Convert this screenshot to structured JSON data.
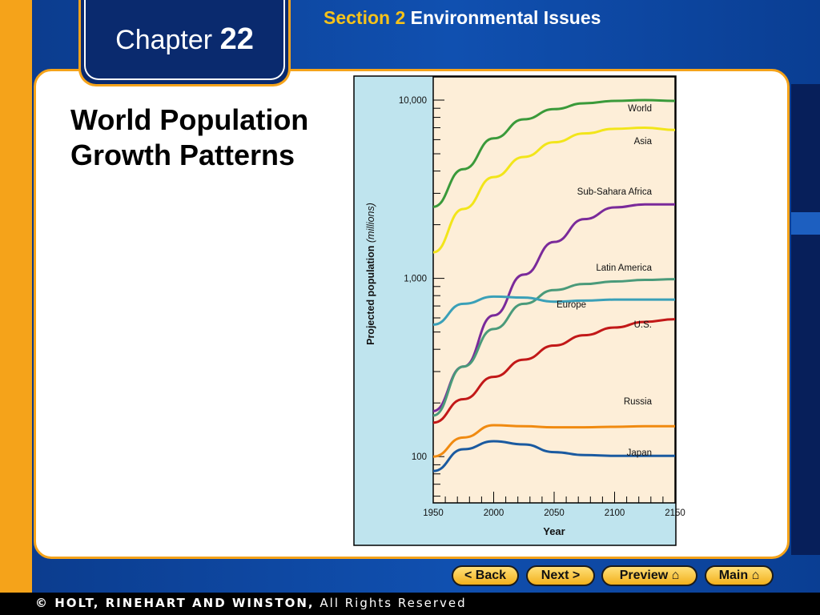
{
  "header": {
    "chapter_word": "Chapter",
    "chapter_num": "22",
    "section_label": "Section 2",
    "section_topic": "Environmental Issues"
  },
  "slide": {
    "title_line1": "World Population",
    "title_line2": "Growth Patterns"
  },
  "nav": {
    "back": "< Back",
    "next": "Next >",
    "preview": "Preview",
    "main": "Main"
  },
  "footer": {
    "publisher": "© HOLT, RINEHART AND WINSTON,",
    "rights": "All Rights Reserved"
  },
  "colors": {
    "accent": "#f5a31a",
    "chart_left_bg": "#bfe4ee",
    "chart_plot_bg": "#fdeed8"
  },
  "chart_data": {
    "type": "line",
    "xlabel": "Year",
    "ylabel": "Projected population",
    "ylabel_unit": "(millions)",
    "xlim": [
      1950,
      2150
    ],
    "ylim": [
      55,
      13500
    ],
    "y_scale": "log",
    "x_ticks": [
      1950,
      2000,
      2050,
      2100,
      2150
    ],
    "y_tick_labels": [
      {
        "value": 10000,
        "label": "10,000"
      },
      {
        "value": 1000,
        "label": "1,000"
      },
      {
        "value": 100,
        "label": "100"
      }
    ],
    "series": [
      {
        "name": "World",
        "color": "#3a9a3a",
        "x": [
          1950,
          1975,
          2000,
          2025,
          2050,
          2075,
          2100,
          2125,
          2150
        ],
        "y": [
          2520,
          4100,
          6100,
          7800,
          8900,
          9600,
          9900,
          10000,
          9900
        ]
      },
      {
        "name": "Asia",
        "color": "#f2e51a",
        "x": [
          1950,
          1975,
          2000,
          2025,
          2050,
          2075,
          2100,
          2125,
          2150
        ],
        "y": [
          1400,
          2450,
          3700,
          4800,
          5800,
          6500,
          6900,
          7000,
          6800
        ]
      },
      {
        "name": "Sub-Sahara Africa",
        "color": "#7a2a9a",
        "x": [
          1950,
          1975,
          2000,
          2025,
          2050,
          2075,
          2100,
          2125,
          2150
        ],
        "y": [
          180,
          320,
          620,
          1050,
          1600,
          2150,
          2500,
          2600,
          2600
        ]
      },
      {
        "name": "Latin America",
        "color": "#4a9a7a",
        "x": [
          1950,
          1975,
          2000,
          2025,
          2050,
          2075,
          2100,
          2125,
          2150
        ],
        "y": [
          170,
          320,
          520,
          720,
          860,
          930,
          960,
          980,
          990
        ]
      },
      {
        "name": "Europe",
        "color": "#3aa0b8",
        "x": [
          1950,
          1975,
          2000,
          2025,
          2050,
          2075,
          2100,
          2125,
          2150
        ],
        "y": [
          550,
          720,
          790,
          780,
          740,
          750,
          760,
          760,
          760
        ]
      },
      {
        "name": "U.S.",
        "color": "#c21818",
        "x": [
          1950,
          1975,
          2000,
          2025,
          2050,
          2075,
          2100,
          2125,
          2150
        ],
        "y": [
          155,
          210,
          280,
          350,
          420,
          480,
          530,
          570,
          590
        ]
      },
      {
        "name": "Russia",
        "color": "#f08a10",
        "x": [
          1950,
          1975,
          2000,
          2025,
          2050,
          2075,
          2100,
          2125,
          2150
        ],
        "y": [
          100,
          128,
          150,
          148,
          146,
          146,
          147,
          148,
          148
        ]
      },
      {
        "name": "Japan",
        "color": "#1a5aa0",
        "x": [
          1950,
          1975,
          2000,
          2025,
          2050,
          2075,
          2100,
          2125,
          2150
        ],
        "y": [
          83,
          110,
          122,
          117,
          106,
          102,
          101,
          101,
          101
        ]
      }
    ]
  }
}
